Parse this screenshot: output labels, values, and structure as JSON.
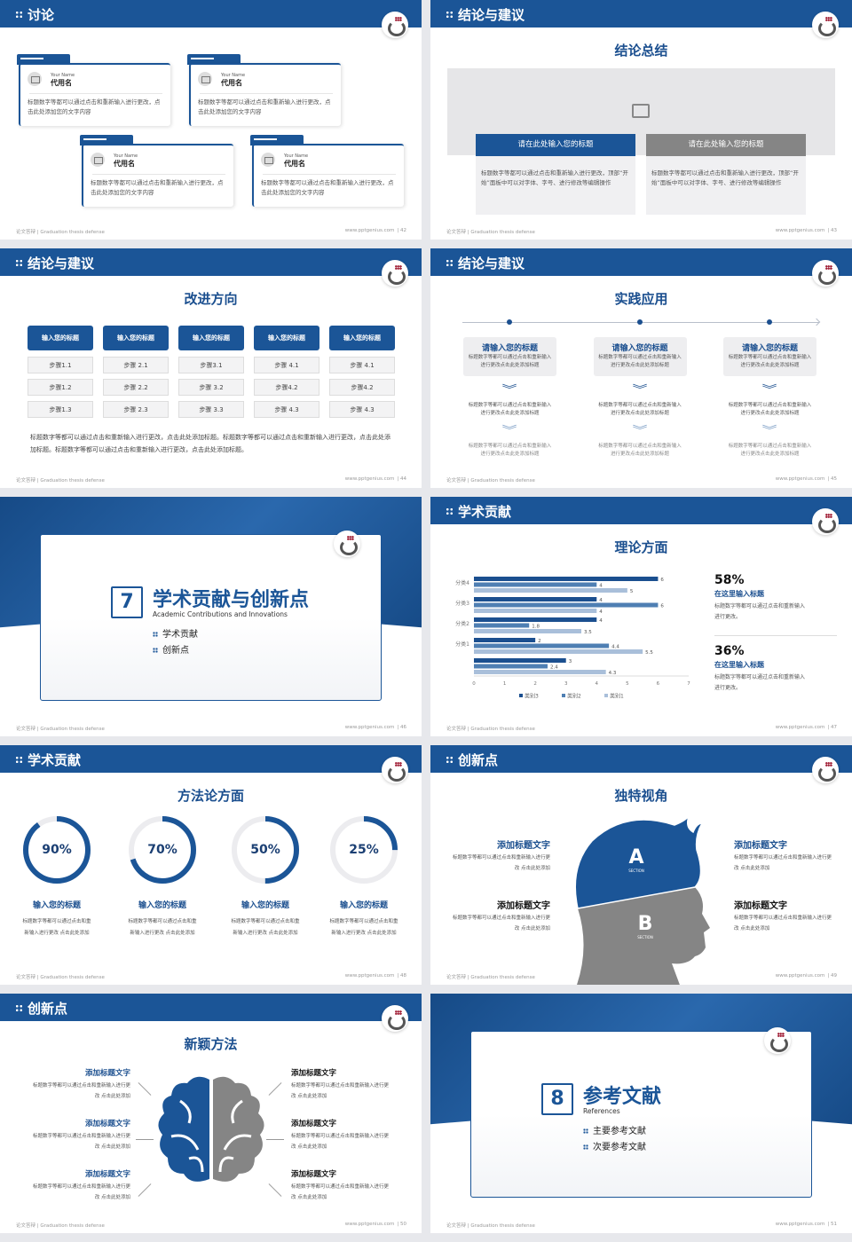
{
  "common": {
    "footer_left": "论文答辩 | Graduation thesis defense",
    "footer_right": "www.pptgenius.com",
    "brand_color": "#1b5597",
    "gray_color": "#858585"
  },
  "slides": [
    {
      "page": "| 42",
      "header": "讨论",
      "cards": [
        {
          "en": "Your Name",
          "name": "代用名",
          "text": "标题数字等都可以通过点击和重新输入进行更改，点击此处添加您的文字内容"
        },
        {
          "en": "Your Name",
          "name": "代用名",
          "text": "标题数字等都可以通过点击和重新输入进行更改，点击此处添加您的文字内容"
        },
        {
          "en": "Your Name",
          "name": "代用名",
          "text": "标题数字等都可以通过点击和重新输入进行更改，点击此处添加您的文字内容"
        },
        {
          "en": "Your Name",
          "name": "代用名",
          "text": "标题数字等都可以通过点击和重新输入进行更改，点击此处添加您的文字内容"
        }
      ]
    },
    {
      "page": "| 43",
      "header": "结论与建议",
      "title": "结论总结",
      "boxes": [
        {
          "title": "请在此处输入您的标题",
          "text": "标题数字等都可以通过点击和重新输入进行更改，顶部“开始”面板中可以对字体、字号、进行修改等编辑操作"
        },
        {
          "title": "请在此处输入您的标题",
          "text": "标题数字等都可以通过点击和重新输入进行更改，顶部“开始”面板中可以对字体、字号、进行修改等编辑操作"
        }
      ]
    },
    {
      "page": "| 44",
      "header": "结论与建议",
      "title": "改进方向",
      "columns": [
        {
          "title": "输入您的标题",
          "steps": [
            "步骤1.1",
            "步骤1.2",
            "步骤1.3"
          ]
        },
        {
          "title": "输入您的标题",
          "steps": [
            "步骤 2.1",
            "步骤 2.2",
            "步骤 2.3"
          ]
        },
        {
          "title": "输入您的标题",
          "steps": [
            "步骤3.1",
            "步骤 3.2",
            "步骤 3.3"
          ]
        },
        {
          "title": "输入您的标题",
          "steps": [
            "步骤 4.1",
            "步骤4.2",
            "步骤 4.3"
          ]
        },
        {
          "title": "输入您的标题",
          "steps": [
            "步骤 4.1",
            "步骤4.2",
            "步骤 4.3"
          ]
        }
      ],
      "note": "标题数字等都可以通过点击和重新输入进行更改，点击此处添加标题。标题数字等都可以通过点击和重新输入进行更改，点击此处添加标题。标题数字等都可以通过点击和重新输入进行更改，点击此处添加标题。"
    },
    {
      "page": "| 45",
      "header": "结论与建议",
      "title": "实践应用",
      "columns": [
        {
          "title": "请输入您的标题",
          "text1": "标题数字等都可以通过点击和重新输入进行更改点击此处添加标题",
          "text2": "标题数字等都可以通过点击和重新输入进行更改点击此处添加标题",
          "text3": "标题数字等都可以通过点击和重新输入进行更改点击此处添加标题"
        },
        {
          "title": "请输入您的标题",
          "text1": "标题数字等都可以通过点击和重新输入进行更改点击此处添加标题",
          "text2": "标题数字等都可以通过点击和重新输入进行更改点击此处添加标题",
          "text3": "标题数字等都可以通过点击和重新输入进行更改点击此处添加标题"
        },
        {
          "title": "请输入您的标题",
          "text1": "标题数字等都可以通过点击和重新输入进行更改点击此处添加标题",
          "text2": "标题数字等都可以通过点击和重新输入进行更改点击此处添加标题",
          "text3": "标题数字等都可以通过点击和重新输入进行更改点击此处添加标题"
        }
      ]
    },
    {
      "page": "| 46",
      "number": "7",
      "title": "学术贡献与创新点",
      "en": "Academic Contributions and Innovations",
      "items": [
        "学术贡献",
        "创新点"
      ]
    },
    {
      "page": "| 47",
      "header": "学术贡献",
      "title": "理论方面",
      "stats": [
        {
          "value": "58%",
          "title": "在这里输入标题",
          "text": "标题数字等都可以通过点击和重新输入进行更改。"
        },
        {
          "value": "36%",
          "title": "在这里输入标题",
          "text": "标题数字等都可以通过点击和重新输入进行更改。"
        }
      ]
    },
    {
      "page": "| 48",
      "header": "学术贡献",
      "title": "方法论方面",
      "rings": [
        {
          "percent": 90,
          "label": "90%",
          "title": "输入您的标题",
          "text": "标题数字等都可以通过点击和重新输入进行更改 点击此处添加"
        },
        {
          "percent": 70,
          "label": "70%",
          "title": "输入您的标题",
          "text": "标题数字等都可以通过点击和重新输入进行更改 点击此处添加"
        },
        {
          "percent": 50,
          "label": "50%",
          "title": "输入您的标题",
          "text": "标题数字等都可以通过点击和重新输入进行更改 点击此处添加"
        },
        {
          "percent": 25,
          "label": "25%",
          "title": "输入您的标题",
          "text": "标题数字等都可以通过点击和重新输入进行更改 点击此处添加"
        }
      ]
    },
    {
      "page": "| 49",
      "header": "创新点",
      "title": "独特视角",
      "head": {
        "a": "A",
        "b": "B",
        "section": "SECTION"
      },
      "items": [
        {
          "title": "添加标题文字",
          "text": "标题数字等都可以通过点击和重新输入进行更改 点击此处添加"
        },
        {
          "title": "添加标题文字",
          "text": "标题数字等都可以通过点击和重新输入进行更改 点击此处添加"
        },
        {
          "title": "添加标题文字",
          "text": "标题数字等都可以通过点击和重新输入进行更改 点击此处添加"
        },
        {
          "title": "添加标题文字",
          "text": "标题数字等都可以通过点击和重新输入进行更改 点击此处添加"
        }
      ]
    },
    {
      "page": "| 50",
      "header": "创新点",
      "title": "新颖方法",
      "items": [
        {
          "title": "添加标题文字",
          "text": "标题数字等都可以通过点击和重新输入进行更改 点击此处添加"
        },
        {
          "title": "添加标题文字",
          "text": "标题数字等都可以通过点击和重新输入进行更改 点击此处添加"
        },
        {
          "title": "添加标题文字",
          "text": "标题数字等都可以通过点击和重新输入进行更改 点击此处添加"
        },
        {
          "title": "添加标题文字",
          "text": "标题数字等都可以通过点击和重新输入进行更改 点击此处添加"
        },
        {
          "title": "添加标题文字",
          "text": "标题数字等都可以通过点击和重新输入进行更改 点击此处添加"
        },
        {
          "title": "添加标题文字",
          "text": "标题数字等都可以通过点击和重新输入进行更改 点击此处添加"
        }
      ]
    },
    {
      "page": "| 51",
      "number": "8",
      "title": "参考文献",
      "en": "References",
      "items": [
        "主要参考文献",
        "次要参考文献"
      ]
    }
  ],
  "chart_data": {
    "type": "bar",
    "orientation": "horizontal",
    "categories": [
      "分类4",
      "分类3",
      "分类2",
      "分类1",
      ""
    ],
    "series": [
      {
        "name": "类别3",
        "color": "#1b4f8f",
        "values": [
          6,
          4,
          4,
          2,
          3
        ]
      },
      {
        "name": "类别2",
        "color": "#4f7fb3",
        "values": [
          4,
          6,
          1.8,
          4.4,
          2.4
        ]
      },
      {
        "name": "类别1",
        "color": "#a9bfda",
        "values": [
          5,
          4,
          3.5,
          5.5,
          4.3
        ]
      }
    ],
    "xlim": [
      0,
      7
    ],
    "xticks": [
      "0",
      "1",
      "2",
      "3",
      "4",
      "5",
      "6",
      "7"
    ],
    "legend": "bottom",
    "grid": false,
    "data_labels": true
  }
}
